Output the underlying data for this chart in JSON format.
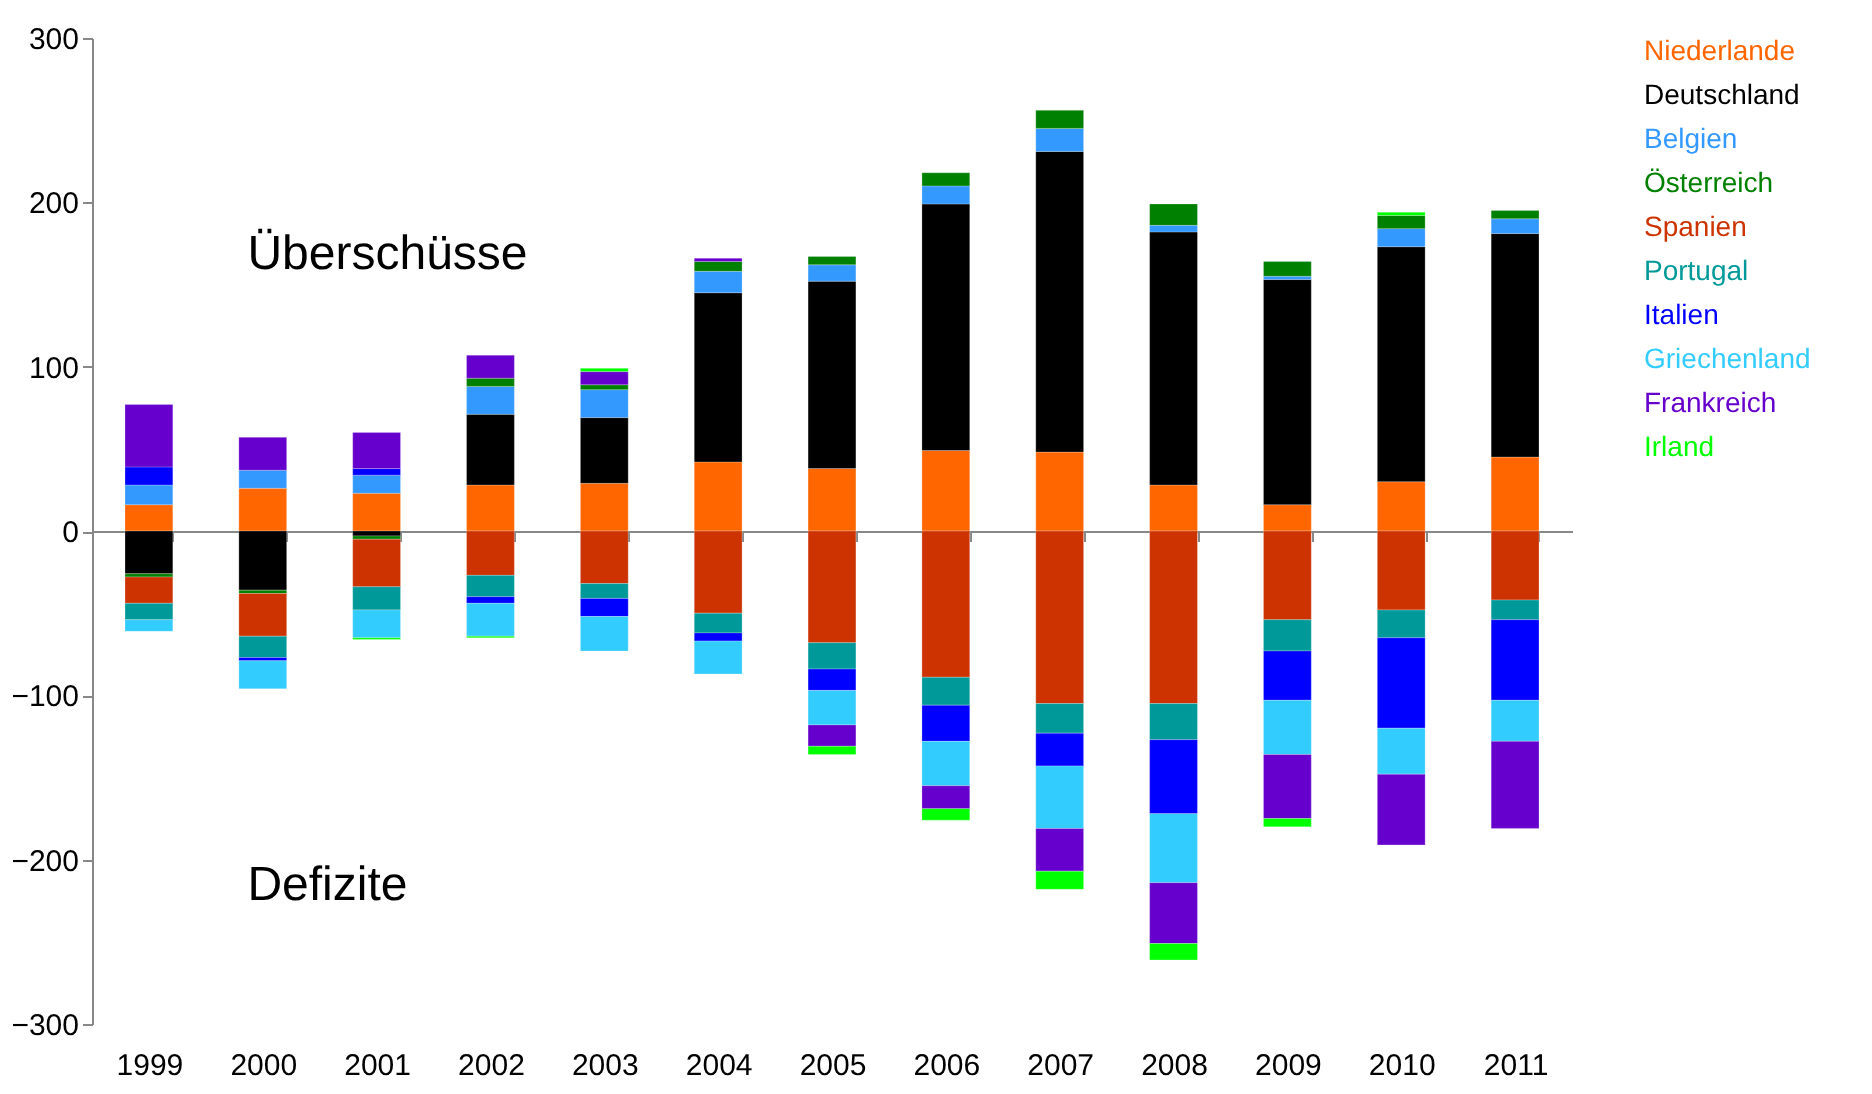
{
  "chart_data": {
    "type": "bar",
    "stacked": true,
    "categories": [
      "1999",
      "2000",
      "2001",
      "2002",
      "2003",
      "2004",
      "2005",
      "2006",
      "2007",
      "2008",
      "2009",
      "2010",
      "2011"
    ],
    "ylim": [
      -300,
      300
    ],
    "yticks": [
      -300,
      -200,
      -100,
      0,
      100,
      200,
      300
    ],
    "legend": "right",
    "annotations": [
      "Überschüsse",
      "Defizite"
    ],
    "series": [
      {
        "name": "Niederlande",
        "color": "#ff6600",
        "values": [
          16,
          26,
          23,
          28,
          29,
          42,
          38,
          49,
          48,
          28,
          16,
          30,
          45
        ]
      },
      {
        "name": "Deutschland",
        "color": "#000000",
        "values": [
          -26,
          -36,
          -3,
          43,
          40,
          103,
          114,
          150,
          183,
          154,
          137,
          143,
          136
        ]
      },
      {
        "name": "Belgien",
        "color": "#3399ff",
        "values": [
          12,
          11,
          11,
          17,
          17,
          13,
          10,
          11,
          14,
          4,
          2,
          11,
          9
        ]
      },
      {
        "name": "Österreich",
        "color": "#008000",
        "values": [
          -2,
          -2,
          -2,
          5,
          3,
          6,
          5,
          8,
          11,
          13,
          9,
          8,
          5
        ]
      },
      {
        "name": "Spanien",
        "color": "#cc3300",
        "values": [
          -16,
          -26,
          -29,
          -27,
          -32,
          -50,
          -68,
          -89,
          -105,
          -105,
          -54,
          -48,
          -42
        ]
      },
      {
        "name": "Portugal",
        "color": "#009999",
        "values": [
          -10,
          -13,
          -14,
          -13,
          -9,
          -12,
          -16,
          -17,
          -18,
          -22,
          -19,
          -17,
          -12
        ]
      },
      {
        "name": "Italien",
        "color": "#0000ff",
        "values": [
          11,
          -2,
          4,
          -4,
          -11,
          -5,
          -13,
          -22,
          -20,
          -45,
          -30,
          -55,
          -49
        ]
      },
      {
        "name": "Griechenland",
        "color": "#33ccff",
        "values": [
          -7,
          -17,
          -17,
          -20,
          -21,
          -20,
          -21,
          -27,
          -38,
          -42,
          -33,
          -28,
          -25
        ]
      },
      {
        "name": "Frankreich",
        "color": "#6600cc",
        "values": [
          38,
          20,
          22,
          14,
          8,
          2,
          -13,
          -14,
          -26,
          -37,
          -39,
          -43,
          -53
        ]
      },
      {
        "name": "Irland",
        "color": "#00ff00",
        "values": [
          null,
          null,
          -1,
          -1,
          2,
          null,
          -5,
          -7,
          -11,
          -10,
          -5,
          2,
          null
        ]
      }
    ]
  }
}
